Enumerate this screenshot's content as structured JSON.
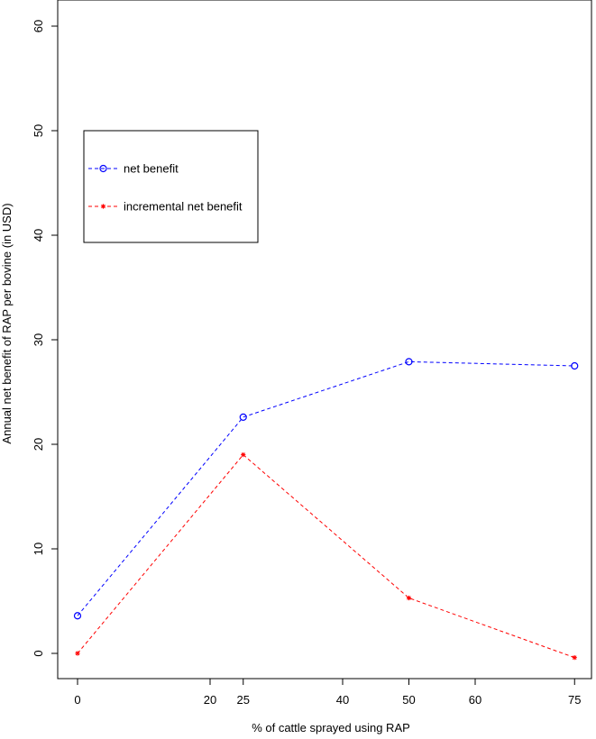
{
  "chart_data": {
    "type": "line",
    "title": "",
    "xlabel": "% of cattle sprayed using RAP",
    "ylabel": "Annual net benefit of RAP per bovine (in USD)",
    "xlim": [
      0,
      75
    ],
    "ylim": [
      0,
      60
    ],
    "x_ticks": [
      0,
      20,
      25,
      40,
      50,
      60,
      75
    ],
    "y_ticks": [
      0,
      10,
      20,
      30,
      40,
      50,
      60
    ],
    "grid": false,
    "legend_position": "top-left",
    "series": [
      {
        "name": "net benefit",
        "color": "#0000ff",
        "line_style": "dashed",
        "marker": "circle",
        "x": [
          0,
          25,
          50,
          75
        ],
        "y": [
          3.6,
          22.6,
          27.9,
          27.5
        ]
      },
      {
        "name": "incremental net benefit",
        "color": "#ff0000",
        "line_style": "dashed",
        "marker": "star",
        "x": [
          0,
          25,
          50,
          75
        ],
        "y": [
          0,
          19.0,
          5.3,
          -0.4
        ]
      }
    ]
  }
}
